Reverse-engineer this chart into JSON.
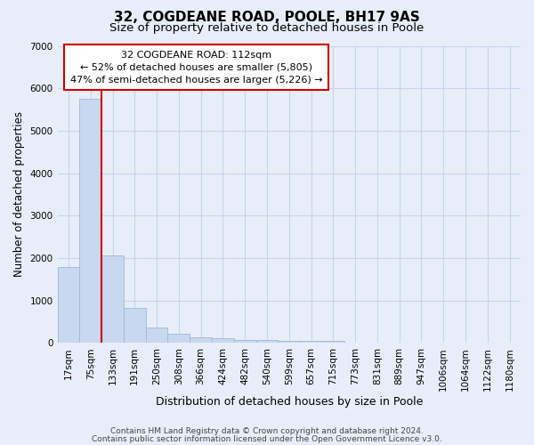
{
  "title": "32, COGDEANE ROAD, POOLE, BH17 9AS",
  "subtitle": "Size of property relative to detached houses in Poole",
  "xlabel": "Distribution of detached houses by size in Poole",
  "ylabel": "Number of detached properties",
  "footer_line1": "Contains HM Land Registry data © Crown copyright and database right 2024.",
  "footer_line2": "Contains public sector information licensed under the Open Government Licence v3.0.",
  "annotation_title": "32 COGDEANE ROAD: 112sqm",
  "annotation_line1": "← 52% of detached houses are smaller (5,805)",
  "annotation_line2": "47% of semi-detached houses are larger (5,226) →",
  "bar_categories": [
    "17sqm",
    "75sqm",
    "133sqm",
    "191sqm",
    "250sqm",
    "308sqm",
    "366sqm",
    "424sqm",
    "482sqm",
    "540sqm",
    "599sqm",
    "657sqm",
    "715sqm",
    "773sqm",
    "831sqm",
    "889sqm",
    "947sqm",
    "1006sqm",
    "1064sqm",
    "1122sqm",
    "1180sqm"
  ],
  "bar_values": [
    1780,
    5750,
    2060,
    820,
    370,
    220,
    130,
    110,
    80,
    60,
    50,
    40,
    50,
    0,
    0,
    0,
    0,
    0,
    0,
    0,
    0
  ],
  "bar_color": "#c8d8ee",
  "bar_edge_color": "#a0b8d8",
  "vline_color": "#cc0000",
  "vline_x": 1.5,
  "ylim": [
    0,
    7000
  ],
  "yticks": [
    0,
    1000,
    2000,
    3000,
    4000,
    5000,
    6000,
    7000
  ],
  "grid_color": "#c8d4e8",
  "background_color": "#e8eef8",
  "annotation_box_facecolor": "#ffffff",
  "annotation_box_edgecolor": "#cc0000",
  "title_fontsize": 11,
  "subtitle_fontsize": 9.5,
  "ylabel_fontsize": 8.5,
  "xlabel_fontsize": 9,
  "tick_fontsize": 7.5,
  "annotation_fontsize": 8,
  "footer_fontsize": 6.5
}
